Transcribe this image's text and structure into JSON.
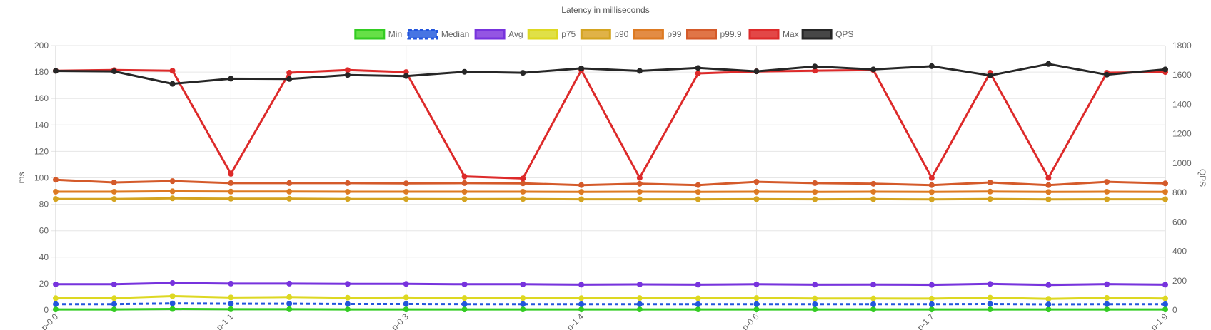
{
  "chart_data": {
    "type": "line",
    "title": "Latency in milliseconds",
    "ylabel": "ms",
    "y2label": "QPS",
    "ylim": [
      0,
      200
    ],
    "y2lim": [
      0,
      1800
    ],
    "yticks": [
      0,
      20,
      40,
      60,
      80,
      100,
      120,
      140,
      160,
      180,
      200
    ],
    "y2ticks": [
      0,
      200,
      400,
      600,
      800,
      1000,
      1200,
      1400,
      1600,
      1800
    ],
    "grid": true,
    "legend_position": "top",
    "xtick_labels": [
      {
        "index": 0,
        "label": "p-0 0"
      },
      {
        "index": 3,
        "label": "p-1 1"
      },
      {
        "index": 6,
        "label": "p-0 3"
      },
      {
        "index": 9,
        "label": "p-1 4"
      },
      {
        "index": 12,
        "label": "p-0 6"
      },
      {
        "index": 15,
        "label": "p-1 7"
      },
      {
        "index": 19,
        "label": "p-1 9"
      }
    ],
    "num_points": 20,
    "series": [
      {
        "name": "Min",
        "axis": "left",
        "color": "#33cc22",
        "fill": "#55dd33",
        "dashed": false,
        "values": [
          0.5,
          0.5,
          0.8,
          0.6,
          0.6,
          0.5,
          0.5,
          0.5,
          0.5,
          0.5,
          0.5,
          0.5,
          0.5,
          0.5,
          0.5,
          0.5,
          0.5,
          0.5,
          0.5,
          0.5
        ]
      },
      {
        "name": "Median",
        "axis": "left",
        "color": "#2255dd",
        "fill": "#3366e0",
        "dashed": true,
        "values": [
          4.5,
          4.5,
          5,
          4.8,
          4.8,
          4.6,
          4.6,
          4.5,
          4.5,
          4.4,
          4.5,
          4.4,
          4.5,
          4.4,
          4.4,
          4.4,
          4.6,
          4.3,
          4.5,
          4.4
        ]
      },
      {
        "name": "Avg",
        "axis": "left",
        "color": "#7733dd",
        "fill": "#8844e0",
        "dashed": false,
        "values": [
          19.5,
          19.5,
          20.5,
          20,
          20,
          19.8,
          19.8,
          19.5,
          19.5,
          19.2,
          19.4,
          19.2,
          19.5,
          19.2,
          19.3,
          19.1,
          19.8,
          19,
          19.6,
          19.2
        ]
      },
      {
        "name": "p75",
        "axis": "left",
        "color": "#ddd822",
        "fill": "#dddd33",
        "dashed": false,
        "values": [
          9,
          9,
          10.5,
          9.5,
          9.8,
          9.3,
          9.5,
          9.1,
          9.1,
          9,
          9.1,
          8.9,
          9.1,
          8.8,
          8.8,
          8.7,
          9.4,
          8.5,
          9.2,
          8.8
        ]
      },
      {
        "name": "p90",
        "axis": "left",
        "color": "#d4a420",
        "fill": "#ddaa33",
        "dashed": false,
        "values": [
          84,
          84,
          84.5,
          84.2,
          84.2,
          84,
          84,
          83.9,
          84,
          83.8,
          83.8,
          83.8,
          83.9,
          83.8,
          83.9,
          83.7,
          84,
          83.7,
          83.8,
          83.8
        ]
      },
      {
        "name": "p99",
        "axis": "left",
        "color": "#dd7a22",
        "fill": "#e08030",
        "dashed": false,
        "values": [
          89.5,
          89.5,
          89.8,
          89.6,
          89.6,
          89.5,
          89.5,
          89.5,
          89.5,
          89.4,
          89.5,
          89.4,
          89.5,
          89.4,
          89.5,
          89.3,
          89.6,
          89.3,
          89.5,
          89.4
        ]
      },
      {
        "name": "p99.9",
        "axis": "left",
        "color": "#d45a2a",
        "fill": "#dd6633",
        "dashed": false,
        "values": [
          98.5,
          96.5,
          97.5,
          96,
          96,
          96,
          95.8,
          96,
          95.8,
          94.5,
          95.5,
          94.5,
          97,
          96,
          95.5,
          94.5,
          96.5,
          94.5,
          97,
          95.8
        ]
      },
      {
        "name": "Max",
        "axis": "left",
        "color": "#dd2a2a",
        "fill": "#e03333",
        "dashed": false,
        "values": [
          181,
          181.5,
          181,
          103,
          179.5,
          181.5,
          180,
          101,
          99.5,
          181.5,
          100,
          179,
          180.5,
          181,
          181.5,
          100,
          179.5,
          100,
          179.5,
          180
        ]
      },
      {
        "name": "QPS",
        "axis": "right",
        "color": "#262626",
        "fill": "#333333",
        "dashed": false,
        "values": [
          1628,
          1625,
          1540,
          1575,
          1573,
          1600,
          1593,
          1622,
          1615,
          1645,
          1628,
          1648,
          1625,
          1658,
          1638,
          1660,
          1597,
          1675,
          1602,
          1638
        ]
      }
    ]
  }
}
